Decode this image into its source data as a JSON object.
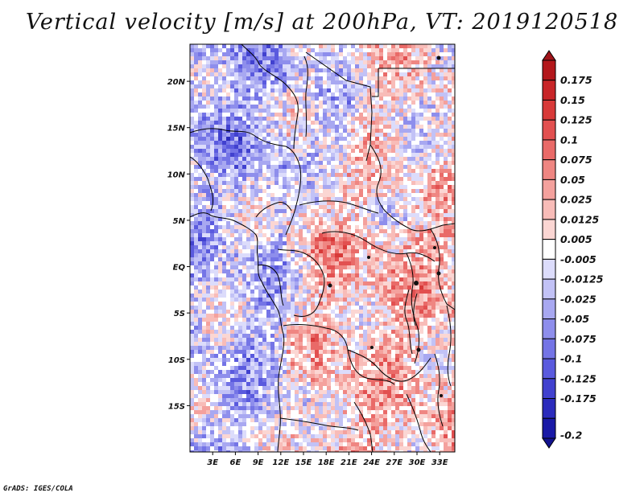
{
  "title": "Vertical velocity [m/s] at 200hPa, VT: 2019120518",
  "credit": "GrADS: IGES/COLA",
  "map": {
    "lon_range": [
      0,
      35
    ],
    "lat_range": [
      -20,
      24
    ],
    "lon_ticks": [
      {
        "value": 3,
        "label": "3E"
      },
      {
        "value": 6,
        "label": "6E"
      },
      {
        "value": 9,
        "label": "9E"
      },
      {
        "value": 12,
        "label": "12E"
      },
      {
        "value": 15,
        "label": "15E"
      },
      {
        "value": 18,
        "label": "18E"
      },
      {
        "value": 21,
        "label": "21E"
      },
      {
        "value": 24,
        "label": "24E"
      },
      {
        "value": 27,
        "label": "27E"
      },
      {
        "value": 30,
        "label": "30E"
      },
      {
        "value": 33,
        "label": "33E"
      }
    ],
    "lat_ticks": [
      {
        "value": 20,
        "label": "20N"
      },
      {
        "value": 15,
        "label": "15N"
      },
      {
        "value": 10,
        "label": "10N"
      },
      {
        "value": 5,
        "label": "5N"
      },
      {
        "value": 0,
        "label": "EQ"
      },
      {
        "value": -5,
        "label": "5S"
      },
      {
        "value": -10,
        "label": "10S"
      },
      {
        "value": -15,
        "label": "15S"
      }
    ]
  },
  "colorbar": {
    "levels": [
      {
        "label": "0.175",
        "color": "#b3171b"
      },
      {
        "label": "0.15",
        "color": "#c82528"
      },
      {
        "label": "0.125",
        "color": "#d83a39"
      },
      {
        "label": "0.1",
        "color": "#e25050"
      },
      {
        "label": "0.075",
        "color": "#e96a68"
      },
      {
        "label": "0.05",
        "color": "#ef8682"
      },
      {
        "label": "0.025",
        "color": "#f4a19d"
      },
      {
        "label": "0.0125",
        "color": "#f8bcb8"
      },
      {
        "label": "0.005",
        "color": "#fbd6d3"
      },
      {
        "label": "",
        "color": "#ffffff"
      },
      {
        "label": "-0.005",
        "color": "#dcdcfb"
      },
      {
        "label": "-0.0125",
        "color": "#c2c2f6"
      },
      {
        "label": "-0.025",
        "color": "#a8a8f1"
      },
      {
        "label": "-0.05",
        "color": "#8e8eec"
      },
      {
        "label": "-0.075",
        "color": "#7474e6"
      },
      {
        "label": "-0.1",
        "color": "#5a5ade"
      },
      {
        "label": "-0.125",
        "color": "#4141cf"
      },
      {
        "label": "-0.175",
        "color": "#2b2bbc"
      },
      {
        "label": "-0.2",
        "color": "#1919a6"
      }
    ],
    "top_color": "#a0141a",
    "bottom_color": "#12128e"
  }
}
